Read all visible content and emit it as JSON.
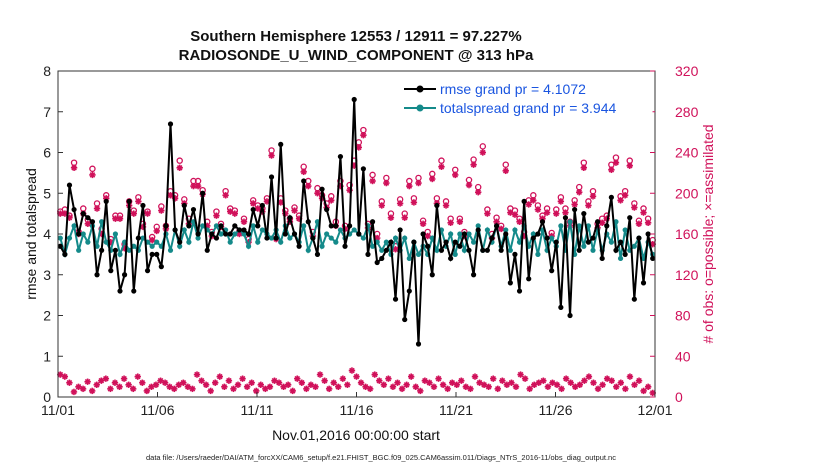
{
  "chart_data": {
    "type": "line",
    "title": "Southern Hemisphere 12553 / 12911 = 97.227%",
    "subtitle": "RADIOSONDE_U_WIND_COMPONENT @ 313 hPa",
    "xlabel": "Nov.01,2016 00:00:00 start",
    "ylabel": "rmse and totalspread",
    "y2label": "# of obs: o=possible; ×=assimilated",
    "footer": "data file: /Users/raeder/DAI/ATM_forcXX/CAM6_setup/f.e21.FHIST_BGC.f09_025.CAM6assim.011/Diags_NTrS_2016-11/obs_diag_output.nc",
    "xlim": [
      0,
      30
    ],
    "ylim": [
      0,
      8
    ],
    "y2lim": [
      0,
      320
    ],
    "x_tick_labels": [
      "11/01",
      "11/06",
      "11/11",
      "11/16",
      "11/21",
      "11/26",
      "12/01"
    ],
    "y_tick_labels": [
      "0",
      "1",
      "2",
      "3",
      "4",
      "5",
      "6",
      "7",
      "8"
    ],
    "y2_tick_labels": [
      "0",
      "40",
      "80",
      "120",
      "160",
      "200",
      "240",
      "280",
      "320"
    ],
    "legend": {
      "position": "top-right",
      "entries": [
        "rmse grand pr = 4.1072",
        "totalspread grand pr = 3.944"
      ]
    },
    "series": [
      {
        "name": "rmse",
        "color": "#000000",
        "values": [
          3.7,
          3.5,
          5.2,
          4.6,
          4.0,
          4.5,
          4.4,
          4.3,
          3.0,
          3.6,
          4.8,
          3.1,
          3.6,
          2.6,
          3.0,
          4.8,
          2.6,
          3.9,
          4.7,
          3.1,
          3.5,
          3.5,
          3.2,
          4.2,
          6.7,
          4.1,
          3.8,
          4.7,
          4.2,
          4.6,
          4.0,
          5.0,
          3.6,
          4.0,
          3.9,
          4.2,
          4.0,
          4.0,
          4.2,
          4.1,
          4.1,
          4.0,
          4.6,
          4.2,
          4.7,
          3.9,
          5.4,
          3.9,
          6.2,
          4.0,
          4.4,
          4.0,
          3.7,
          5.3,
          4.3,
          3.9,
          3.5,
          5.1,
          4.6,
          4.2,
          4.2,
          5.9,
          3.7,
          4.2,
          7.3,
          4.0,
          5.6,
          3.5,
          4.3,
          3.3,
          3.4,
          3.6,
          3.8,
          2.4,
          4.1,
          1.9,
          2.6,
          3.8,
          1.3,
          4.0,
          3.7,
          3.0,
          4.7,
          3.6,
          3.8,
          3.4,
          3.8,
          3.7,
          4.0,
          3.6,
          3.0,
          4.1,
          3.6,
          3.6,
          3.9,
          4.2,
          3.6,
          4.0,
          2.8,
          3.5,
          2.6,
          4.8,
          2.9,
          3.9,
          4.0,
          4.3,
          3.9,
          3.1,
          3.8,
          2.2,
          4.4,
          2.0,
          4.6,
          3.6,
          4.5,
          3.8,
          3.9,
          4.3,
          3.4,
          4.2,
          4.9,
          3.6,
          3.8,
          3.5,
          4.4,
          2.4,
          3.9,
          2.8,
          4.0,
          3.4
        ]
      },
      {
        "name": "totalspread",
        "color": "#148a8a",
        "values": [
          3.9,
          3.5,
          3.9,
          4.2,
          3.6,
          4.0,
          3.8,
          4.2,
          3.7,
          4.3,
          3.8,
          3.6,
          4.0,
          3.5,
          3.8,
          3.6,
          3.7,
          3.6,
          3.9,
          3.8,
          3.7,
          3.8,
          3.7,
          4.0,
          3.6,
          4.1,
          3.7,
          4.1,
          3.8,
          4.3,
          3.9,
          4.2,
          4.1,
          4.0,
          4.2,
          4.0,
          4.1,
          3.8,
          4.0,
          4.1,
          4.0,
          3.7,
          4.2,
          3.8,
          4.1,
          4.0,
          3.9,
          4.1,
          3.8,
          4.2,
          3.9,
          4.0,
          3.8,
          4.2,
          3.6,
          3.9,
          4.3,
          3.7,
          4.0,
          3.9,
          3.8,
          4.1,
          3.9,
          4.0,
          4.1,
          4.0,
          3.9,
          4.2,
          3.7,
          3.8,
          3.6,
          3.8,
          3.5,
          3.9,
          3.6,
          3.9,
          3.4,
          3.8,
          3.5,
          3.7,
          3.5,
          3.9,
          3.6,
          4.1,
          3.7,
          4.0,
          3.5,
          4.0,
          3.6,
          4.0,
          3.8,
          4.2,
          3.6,
          4.1,
          3.8,
          4.2,
          3.7,
          4.1,
          3.6,
          4.1,
          3.8,
          4.2,
          3.7,
          4.0,
          3.5,
          4.1,
          3.6,
          3.9,
          3.7,
          4.2,
          3.6,
          4.3,
          3.5,
          4.2,
          3.7,
          4.2,
          3.6,
          4.1,
          3.6,
          4.0,
          3.8,
          4.3,
          3.4,
          4.1,
          3.6,
          3.7,
          3.9,
          3.4,
          3.8,
          3.5
        ]
      },
      {
        "name": "possible",
        "color": "#d0115a",
        "marker": "o",
        "values": [
          182,
          184,
          178,
          230,
          162,
          185,
          174,
          224,
          190,
          165,
          198,
          155,
          178,
          178,
          150,
          192,
          183,
          196,
          170,
          182,
          157,
          167,
          187,
          168,
          202,
          198,
          232,
          194,
          175,
          212,
          212,
          203,
          172,
          162,
          182,
          170,
          202,
          185,
          183,
          163,
          175,
          155,
          193,
          188,
          185,
          195,
          242,
          158,
          195,
          183,
          175,
          186,
          178,
          226,
          212,
          162,
          205,
          198,
          190,
          197,
          172,
          212,
          168,
          208,
          232,
          250,
          262,
          170,
          218,
          160,
          192,
          215,
          180,
          148,
          194,
          180,
          212,
          195,
          215,
          173,
          162,
          219,
          195,
          232,
          192,
          175,
          223,
          175,
          162,
          213,
          233,
          206,
          246,
          184,
          160,
          176,
          168,
          228,
          185,
          183,
          175,
          162,
          193,
          198,
          188,
          178,
          185,
          161,
          184,
          196,
          185,
          172,
          193,
          206,
          230,
          192,
          202,
          170,
          175,
          178,
          228,
          235,
          197,
          202,
          232,
          190,
          173,
          185,
          175,
          154
        ]
      },
      {
        "name": "assimilated",
        "color": "#d0115a",
        "marker": "*",
        "values": [
          180,
          180,
          176,
          225,
          160,
          180,
          170,
          218,
          185,
          160,
          195,
          152,
          175,
          175,
          146,
          188,
          180,
          192,
          167,
          180,
          154,
          163,
          183,
          165,
          198,
          195,
          225,
          190,
          170,
          207,
          207,
          199,
          168,
          158,
          178,
          167,
          198,
          182,
          180,
          160,
          172,
          152,
          190,
          185,
          182,
          192,
          237,
          155,
          191,
          180,
          172,
          183,
          175,
          221,
          207,
          158,
          200,
          195,
          186,
          193,
          168,
          207,
          165,
          203,
          227,
          245,
          257,
          166,
          212,
          156,
          188,
          210,
          176,
          145,
          190,
          176,
          207,
          191,
          210,
          170,
          158,
          214,
          190,
          226,
          188,
          171,
          218,
          172,
          158,
          208,
          228,
          201,
          240,
          180,
          156,
          172,
          165,
          222,
          181,
          179,
          172,
          158,
          189,
          193,
          184,
          175,
          181,
          158,
          180,
          192,
          181,
          168,
          189,
          201,
          225,
          188,
          197,
          166,
          171,
          175,
          223,
          230,
          193,
          198,
          227,
          186,
          170,
          181,
          171,
          150
        ]
      },
      {
        "name": "assimilated_low",
        "color": "#d0115a",
        "marker": "*",
        "values": [
          22,
          20,
          14,
          5,
          10,
          8,
          15,
          6,
          12,
          16,
          18,
          8,
          14,
          10,
          18,
          12,
          8,
          20,
          14,
          6,
          10,
          12,
          16,
          14,
          10,
          8,
          12,
          14,
          10,
          8,
          22,
          16,
          12,
          6,
          14,
          20,
          10,
          16,
          8,
          12,
          18,
          10,
          14,
          6,
          12,
          8,
          10,
          16,
          14,
          10,
          12,
          6,
          18,
          14,
          8,
          12,
          10,
          22,
          16,
          8,
          14,
          10,
          18,
          12,
          26,
          20,
          14,
          10,
          8,
          22,
          16,
          12,
          18,
          10,
          14,
          8,
          12,
          20,
          10,
          6,
          16,
          14,
          10,
          18,
          12,
          8,
          14,
          12,
          16,
          10,
          8,
          20,
          14,
          12,
          10,
          18,
          8,
          16,
          12,
          14,
          10,
          22,
          18,
          8,
          12,
          14,
          16,
          10,
          14,
          12,
          8,
          18,
          14,
          10,
          12,
          16,
          20,
          14,
          8,
          12,
          18,
          16,
          10,
          14,
          8,
          20,
          12,
          16,
          6,
          10,
          4
        ]
      }
    ]
  }
}
